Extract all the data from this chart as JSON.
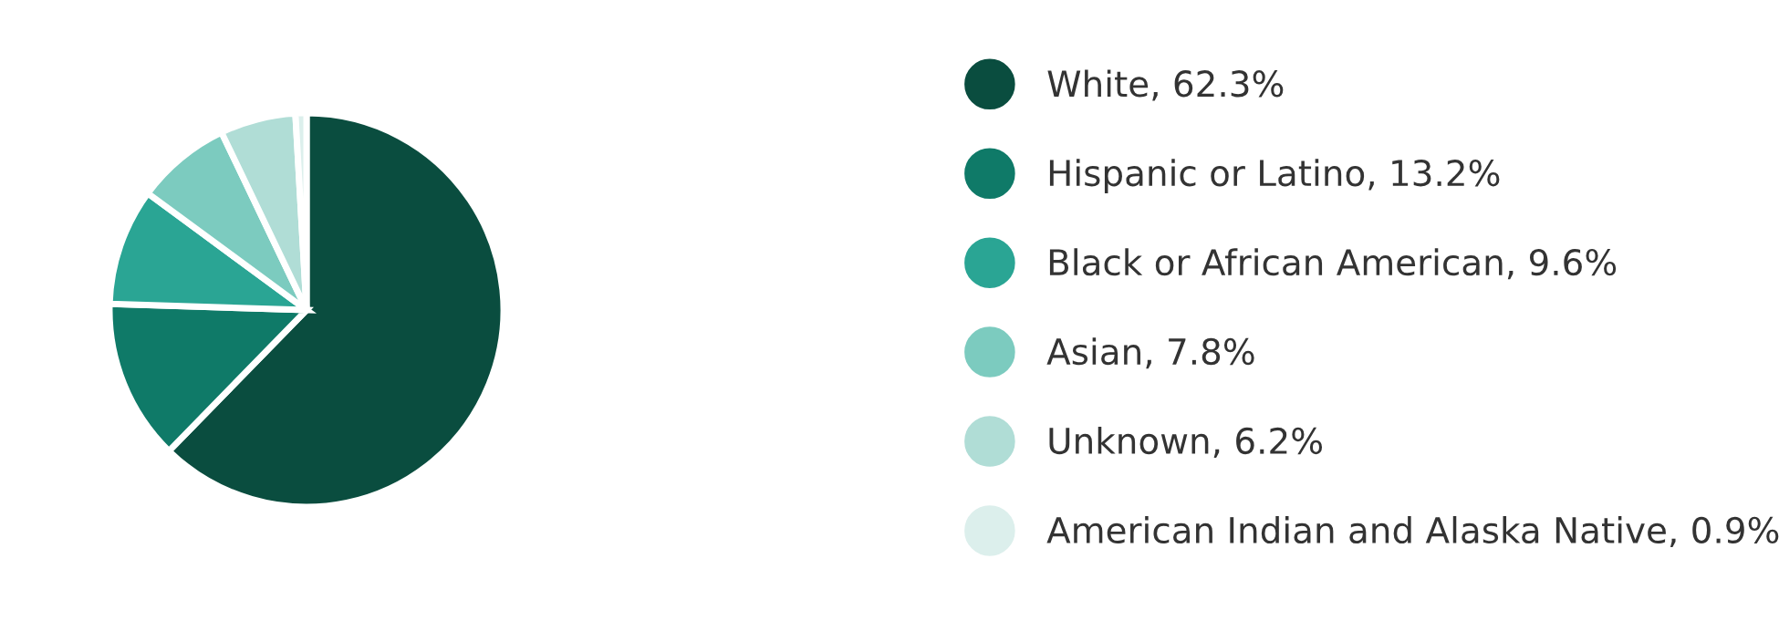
{
  "chart_data": {
    "type": "pie",
    "categories": [
      "White",
      "Hispanic or Latino",
      "Black or African American",
      "Asian",
      "Unknown",
      "American Indian and Alaska Native"
    ],
    "values": [
      62.3,
      13.2,
      9.6,
      7.8,
      6.2,
      0.9
    ],
    "value_labels": [
      "62.3%",
      "13.2%",
      "9.6%",
      "7.8%",
      "6.2%",
      "0.9%"
    ],
    "colors": [
      "#0a4d3f",
      "#0f7a68",
      "#2aa594",
      "#7ccbbf",
      "#b0ddd6",
      "#dcefec"
    ],
    "legend": "right"
  }
}
